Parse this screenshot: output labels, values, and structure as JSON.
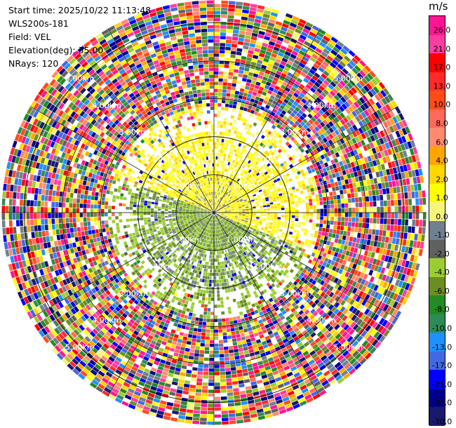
{
  "header": {
    "start_time": "Start time: 2025/10/22 11:13:48",
    "instrument": "WLS200s-181",
    "field": "Field: VEL",
    "elevation": "Elevation(deg): 35.00",
    "nrays": "NRays: 120"
  },
  "colorbar": {
    "unit": "m/s",
    "ticks": [
      "26.0",
      "21.0",
      "17.0",
      "13.0",
      "10.0",
      "8.0",
      "6.0",
      "4.0",
      "2.0",
      "1.0",
      "0.0",
      "-1.0",
      "-2.0",
      "-4.0",
      "-6.0",
      "-8.0",
      "-10.0",
      "-13.0",
      "-17.0",
      "-21.0",
      "-26.0",
      "-30.0"
    ],
    "colors": [
      "#ff1493",
      "#ff3ca0",
      "#ff0000",
      "#ff2a2a",
      "#ff4a1a",
      "#ff6a5a",
      "#ff8a70",
      "#ffa500",
      "#ffd700",
      "#ffff00",
      "#f5f57a",
      "#708090",
      "#606060",
      "#9acd32",
      "#6b8e23",
      "#228b22",
      "#2e8b57",
      "#1e90ff",
      "#4169e1",
      "#0000ff",
      "#00008b",
      "#191970"
    ]
  },
  "chart_data": {
    "type": "ppi",
    "field": "VEL",
    "elevation_deg": 35.0,
    "nrays": 120,
    "range_unit": "km",
    "range_rings_km": [
      1.0,
      2.0,
      3.0,
      4.0,
      5.0
    ],
    "range_labels": [
      "1.00km",
      "2.00km",
      "3.00km",
      "4.00km",
      "5.00km"
    ],
    "vmin": -30.0,
    "vmax": 26.0,
    "max_range_km": 5.6,
    "spokes_deg": [
      0,
      30,
      60,
      90,
      120,
      150,
      180,
      210,
      240,
      270,
      300,
      330
    ]
  }
}
